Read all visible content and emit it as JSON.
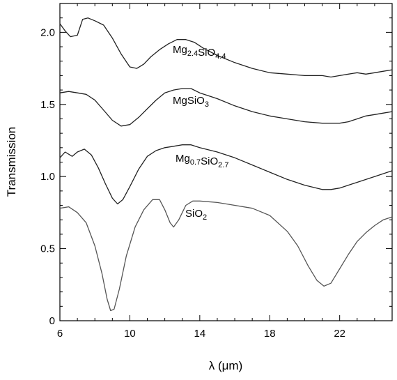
{
  "chart_data": {
    "type": "line",
    "xlabel": "λ  (μm)",
    "ylabel": "Transmission",
    "xlim": [
      6,
      25
    ],
    "ylim": [
      0,
      2.2
    ],
    "x_ticks": [
      "6",
      "10",
      "14",
      "18",
      "22"
    ],
    "x_tick_values": [
      6,
      10,
      14,
      18,
      22
    ],
    "y_ticks": [
      "0",
      "0.5",
      "1.0",
      "1.5",
      "2.0"
    ],
    "y_tick_values": [
      0,
      0.5,
      1.0,
      1.5,
      2.0
    ],
    "grid": false,
    "legend": "none",
    "series": [
      {
        "name": "Mg2.4SiO4.4",
        "label_base": "Mg",
        "label_sub1": "2.4",
        "label_mid": "SiO",
        "label_sub2": "4.4",
        "color": "#222222",
        "points": [
          [
            6.0,
            2.06
          ],
          [
            6.3,
            2.01
          ],
          [
            6.6,
            1.97
          ],
          [
            7.0,
            1.98
          ],
          [
            7.3,
            2.09
          ],
          [
            7.6,
            2.1
          ],
          [
            8.0,
            2.08
          ],
          [
            8.5,
            2.05
          ],
          [
            9.0,
            1.96
          ],
          [
            9.5,
            1.85
          ],
          [
            10.0,
            1.76
          ],
          [
            10.4,
            1.75
          ],
          [
            10.8,
            1.78
          ],
          [
            11.2,
            1.83
          ],
          [
            11.7,
            1.88
          ],
          [
            12.2,
            1.92
          ],
          [
            12.7,
            1.95
          ],
          [
            13.2,
            1.95
          ],
          [
            13.7,
            1.93
          ],
          [
            14.2,
            1.89
          ],
          [
            15.0,
            1.84
          ],
          [
            16.0,
            1.79
          ],
          [
            17.0,
            1.75
          ],
          [
            18.0,
            1.72
          ],
          [
            19.0,
            1.71
          ],
          [
            20.0,
            1.7
          ],
          [
            21.0,
            1.7
          ],
          [
            21.5,
            1.69
          ],
          [
            22.0,
            1.7
          ],
          [
            22.5,
            1.71
          ],
          [
            23.0,
            1.72
          ],
          [
            23.5,
            1.71
          ],
          [
            24.0,
            1.72
          ],
          [
            24.5,
            1.73
          ],
          [
            25.0,
            1.74
          ]
        ]
      },
      {
        "name": "MgSiO3",
        "label_base": "MgSiO",
        "label_sub1": "3",
        "label_mid": "",
        "label_sub2": "",
        "color": "#222222",
        "points": [
          [
            6.0,
            1.58
          ],
          [
            6.5,
            1.59
          ],
          [
            7.0,
            1.58
          ],
          [
            7.5,
            1.57
          ],
          [
            8.0,
            1.53
          ],
          [
            8.5,
            1.46
          ],
          [
            9.0,
            1.39
          ],
          [
            9.5,
            1.35
          ],
          [
            10.0,
            1.36
          ],
          [
            10.5,
            1.41
          ],
          [
            11.0,
            1.47
          ],
          [
            11.5,
            1.53
          ],
          [
            12.0,
            1.58
          ],
          [
            12.5,
            1.6
          ],
          [
            13.0,
            1.61
          ],
          [
            13.5,
            1.61
          ],
          [
            14.0,
            1.58
          ],
          [
            14.5,
            1.56
          ],
          [
            15.0,
            1.54
          ],
          [
            16.0,
            1.49
          ],
          [
            17.0,
            1.45
          ],
          [
            18.0,
            1.42
          ],
          [
            19.0,
            1.4
          ],
          [
            20.0,
            1.38
          ],
          [
            21.0,
            1.37
          ],
          [
            22.0,
            1.37
          ],
          [
            22.5,
            1.38
          ],
          [
            23.0,
            1.4
          ],
          [
            23.5,
            1.42
          ],
          [
            24.0,
            1.43
          ],
          [
            24.5,
            1.44
          ],
          [
            25.0,
            1.45
          ]
        ]
      },
      {
        "name": "Mg0.7SiO2.7",
        "label_base": "Mg",
        "label_sub1": "0.7",
        "label_mid": "SiO",
        "label_sub2": "2.7",
        "color": "#222222",
        "points": [
          [
            6.0,
            1.13
          ],
          [
            6.3,
            1.17
          ],
          [
            6.7,
            1.14
          ],
          [
            7.0,
            1.17
          ],
          [
            7.4,
            1.19
          ],
          [
            7.8,
            1.15
          ],
          [
            8.2,
            1.06
          ],
          [
            8.6,
            0.95
          ],
          [
            9.0,
            0.85
          ],
          [
            9.3,
            0.81
          ],
          [
            9.6,
            0.84
          ],
          [
            10.0,
            0.93
          ],
          [
            10.5,
            1.05
          ],
          [
            11.0,
            1.14
          ],
          [
            11.5,
            1.18
          ],
          [
            12.0,
            1.2
          ],
          [
            12.5,
            1.21
          ],
          [
            13.0,
            1.22
          ],
          [
            13.5,
            1.22
          ],
          [
            14.0,
            1.2
          ],
          [
            15.0,
            1.17
          ],
          [
            16.0,
            1.13
          ],
          [
            17.0,
            1.08
          ],
          [
            18.0,
            1.03
          ],
          [
            19.0,
            0.98
          ],
          [
            20.0,
            0.94
          ],
          [
            21.0,
            0.91
          ],
          [
            21.5,
            0.91
          ],
          [
            22.0,
            0.92
          ],
          [
            23.0,
            0.96
          ],
          [
            24.0,
            1.0
          ],
          [
            25.0,
            1.04
          ]
        ]
      },
      {
        "name": "SiO2",
        "label_base": "SiO",
        "label_sub1": "2",
        "label_mid": "",
        "label_sub2": "",
        "color": "#555555",
        "points": [
          [
            6.0,
            0.78
          ],
          [
            6.5,
            0.79
          ],
          [
            7.0,
            0.75
          ],
          [
            7.5,
            0.68
          ],
          [
            8.0,
            0.52
          ],
          [
            8.4,
            0.33
          ],
          [
            8.7,
            0.15
          ],
          [
            8.9,
            0.07
          ],
          [
            9.1,
            0.08
          ],
          [
            9.4,
            0.22
          ],
          [
            9.8,
            0.45
          ],
          [
            10.3,
            0.65
          ],
          [
            10.8,
            0.77
          ],
          [
            11.3,
            0.84
          ],
          [
            11.7,
            0.84
          ],
          [
            12.0,
            0.77
          ],
          [
            12.3,
            0.68
          ],
          [
            12.5,
            0.65
          ],
          [
            12.8,
            0.7
          ],
          [
            13.2,
            0.8
          ],
          [
            13.6,
            0.83
          ],
          [
            14.0,
            0.83
          ],
          [
            15.0,
            0.82
          ],
          [
            16.0,
            0.8
          ],
          [
            17.0,
            0.78
          ],
          [
            18.0,
            0.73
          ],
          [
            19.0,
            0.62
          ],
          [
            19.6,
            0.52
          ],
          [
            20.2,
            0.38
          ],
          [
            20.7,
            0.28
          ],
          [
            21.1,
            0.24
          ],
          [
            21.5,
            0.26
          ],
          [
            22.0,
            0.36
          ],
          [
            22.5,
            0.46
          ],
          [
            23.0,
            0.55
          ],
          [
            23.5,
            0.61
          ],
          [
            24.0,
            0.66
          ],
          [
            24.5,
            0.7
          ],
          [
            25.0,
            0.72
          ]
        ]
      }
    ]
  }
}
